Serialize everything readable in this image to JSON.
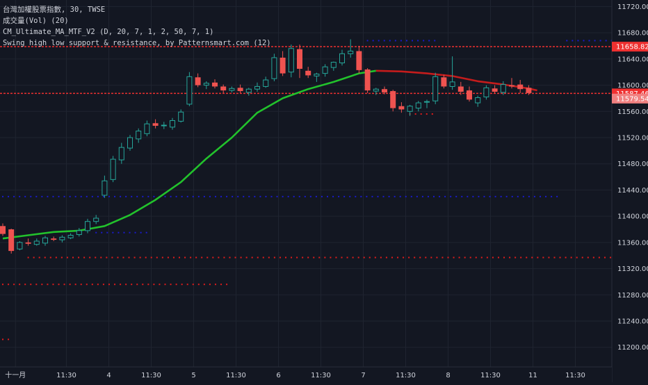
{
  "legend": {
    "symbol_line": "台灣加權股票指數, 30, TWSE",
    "volume_line": "成交量(Vol) (20)",
    "indicator1_line": "CM_Ultimate_MA_MTF_V2 (D, 20, 7, 1, 2, 50, 7, 1)",
    "indicator2_line": "Swing high low support & resistance, by Patternsmart.com (12)"
  },
  "colors": {
    "background": "#131722",
    "grid": "#1f2430",
    "text": "#d1d4dc",
    "up_candle": "#26a69a",
    "down_candle": "#ef5350",
    "ma_up": "#22c22c",
    "ma_down": "#c41c1c",
    "resistance_dots": "#1a1acc",
    "support_dots": "#e01c1c",
    "price_tag_red": "#ef3030",
    "price_tag_light": "#f08080"
  },
  "chart_data": {
    "type": "candlestick",
    "y_axis": {
      "ticks": [
        11200,
        11240,
        11280,
        11320,
        11360,
        11400,
        11440,
        11480,
        11520,
        11560,
        11600,
        11640,
        11680,
        11720
      ],
      "tick_labels": [
        "11200.00",
        "11240.00",
        "11280.00",
        "11320.00",
        "11360.00",
        "11400.00",
        "11440.00",
        "11480.00",
        "11520.00",
        "11560.00",
        "11600.00",
        "11640.00",
        "11680.00",
        "11720.00"
      ],
      "range": [
        11170,
        11730
      ]
    },
    "x_axis": {
      "labels": [
        {
          "i": 1.5,
          "text": "十一月"
        },
        {
          "i": 7.5,
          "text": "11:30"
        },
        {
          "i": 12.5,
          "text": "4"
        },
        {
          "i": 17.5,
          "text": "11:30"
        },
        {
          "i": 22.5,
          "text": "5"
        },
        {
          "i": 27.5,
          "text": "11:30"
        },
        {
          "i": 32.5,
          "text": "6"
        },
        {
          "i": 37.5,
          "text": "11:30"
        },
        {
          "i": 42.5,
          "text": "7"
        },
        {
          "i": 47.5,
          "text": "11:30"
        },
        {
          "i": 52.5,
          "text": "8"
        },
        {
          "i": 57.5,
          "text": "11:30"
        },
        {
          "i": 62.5,
          "text": "11"
        },
        {
          "i": 67.5,
          "text": "11:30"
        }
      ]
    },
    "candles": [
      [
        11385,
        11389,
        11370,
        11373
      ],
      [
        11380,
        11381,
        11343,
        11347
      ],
      [
        11350,
        11362,
        11348,
        11360
      ],
      [
        11360,
        11366,
        11355,
        11358
      ],
      [
        11357,
        11366,
        11355,
        11362
      ],
      [
        11359,
        11370,
        11355,
        11367
      ],
      [
        11366,
        11369,
        11362,
        11364
      ],
      [
        11364,
        11371,
        11360,
        11368
      ],
      [
        11367,
        11374,
        11365,
        11371
      ],
      [
        11372,
        11382,
        11369,
        11378
      ],
      [
        11378,
        11396,
        11374,
        11392
      ],
      [
        11392,
        11402,
        11388,
        11397
      ],
      [
        11432,
        11462,
        11428,
        11454
      ],
      [
        11456,
        11492,
        11452,
        11487
      ],
      [
        11486,
        11512,
        11480,
        11505
      ],
      [
        11504,
        11524,
        11500,
        11520
      ],
      [
        11518,
        11534,
        11512,
        11530
      ],
      [
        11526,
        11546,
        11522,
        11541
      ],
      [
        11542,
        11548,
        11534,
        11538
      ],
      [
        11538,
        11544,
        11533,
        11539
      ],
      [
        11536,
        11550,
        11532,
        11546
      ],
      [
        11545,
        11563,
        11543,
        11559
      ],
      [
        11571,
        11620,
        11568,
        11613
      ],
      [
        11612,
        11618,
        11597,
        11600
      ],
      [
        11600,
        11606,
        11594,
        11603
      ],
      [
        11604,
        11609,
        11595,
        11598
      ],
      [
        11598,
        11601,
        11588,
        11592
      ],
      [
        11592,
        11598,
        11589,
        11595
      ],
      [
        11596,
        11601,
        11588,
        11591
      ],
      [
        11589,
        11596,
        11584,
        11594
      ],
      [
        11594,
        11604,
        11590,
        11598
      ],
      [
        11598,
        11613,
        11596,
        11608
      ],
      [
        11610,
        11648,
        11606,
        11642
      ],
      [
        11642,
        11652,
        11614,
        11618
      ],
      [
        11620,
        11662,
        11612,
        11656
      ],
      [
        11655,
        11662,
        11611,
        11625
      ],
      [
        11622,
        11628,
        11611,
        11615
      ],
      [
        11614,
        11619,
        11605,
        11617
      ],
      [
        11618,
        11632,
        11613,
        11628
      ],
      [
        11627,
        11636,
        11622,
        11635
      ],
      [
        11634,
        11654,
        11630,
        11648
      ],
      [
        11648,
        11670,
        11642,
        11652
      ],
      [
        11652,
        11660,
        11618,
        11623
      ],
      [
        11624,
        11626,
        11588,
        11592
      ],
      [
        11591,
        11596,
        11585,
        11594
      ],
      [
        11594,
        11598,
        11586,
        11589
      ],
      [
        11591,
        11593,
        11560,
        11565
      ],
      [
        11568,
        11574,
        11558,
        11563
      ],
      [
        11560,
        11570,
        11553,
        11568
      ],
      [
        11565,
        11576,
        11560,
        11573
      ],
      [
        11574,
        11578,
        11565,
        11575
      ],
      [
        11576,
        11619,
        11571,
        11613
      ],
      [
        11612,
        11616,
        11595,
        11598
      ],
      [
        11598,
        11644,
        11593,
        11605
      ],
      [
        11598,
        11605,
        11585,
        11590
      ],
      [
        11592,
        11598,
        11575,
        11578
      ],
      [
        11573,
        11584,
        11567,
        11581
      ],
      [
        11582,
        11600,
        11578,
        11596
      ],
      [
        11595,
        11600,
        11588,
        11590
      ],
      [
        11589,
        11606,
        11585,
        11601
      ],
      [
        11600,
        11611,
        11595,
        11598
      ],
      [
        11601,
        11608,
        11588,
        11594
      ],
      [
        11596,
        11600,
        11585,
        11588
      ]
    ],
    "ma_green": [
      [
        0,
        11366
      ],
      [
        3,
        11371
      ],
      [
        6,
        11376
      ],
      [
        9,
        11378
      ],
      [
        12,
        11385
      ],
      [
        15,
        11402
      ],
      [
        18,
        11425
      ],
      [
        21,
        11452
      ],
      [
        24,
        11488
      ],
      [
        27,
        11520
      ],
      [
        30,
        11558
      ],
      [
        33,
        11580
      ],
      [
        36,
        11594
      ],
      [
        39,
        11605
      ],
      [
        42,
        11618
      ],
      [
        44,
        11622
      ]
    ],
    "ma_red": [
      [
        44,
        11622
      ],
      [
        47,
        11621
      ],
      [
        50,
        11618
      ],
      [
        53,
        11614
      ],
      [
        56,
        11606
      ],
      [
        59,
        11601
      ],
      [
        62,
        11595
      ],
      [
        63,
        11592
      ]
    ],
    "resistance_dot_rows": [
      {
        "y": 11668,
        "from": 43,
        "to": 51
      },
      {
        "y": 11668,
        "from": 66.5,
        "to": 76
      },
      {
        "y": 11430,
        "from": 0,
        "to": 65.5
      },
      {
        "y": 11375,
        "from": 11,
        "to": 17
      }
    ],
    "support_dot_rows": [
      {
        "y": 11337,
        "from": 3,
        "to": 72.5
      },
      {
        "y": 11296,
        "from": 0,
        "to": 26.5
      },
      {
        "y": 11212,
        "from": 0,
        "to": 1
      },
      {
        "y": 11556,
        "from": 48,
        "to": 51
      },
      {
        "y": 11552,
        "from": 74,
        "to": 74.5
      }
    ],
    "support_resistance_lines": [
      {
        "y": 11658.82,
        "label": "11658.82",
        "style": "red"
      },
      {
        "y": 11587.46,
        "label": "11587.46",
        "style": "red"
      }
    ],
    "price_tags": [
      {
        "y": 11579.54,
        "label": "11579.54",
        "style": "light"
      }
    ]
  }
}
